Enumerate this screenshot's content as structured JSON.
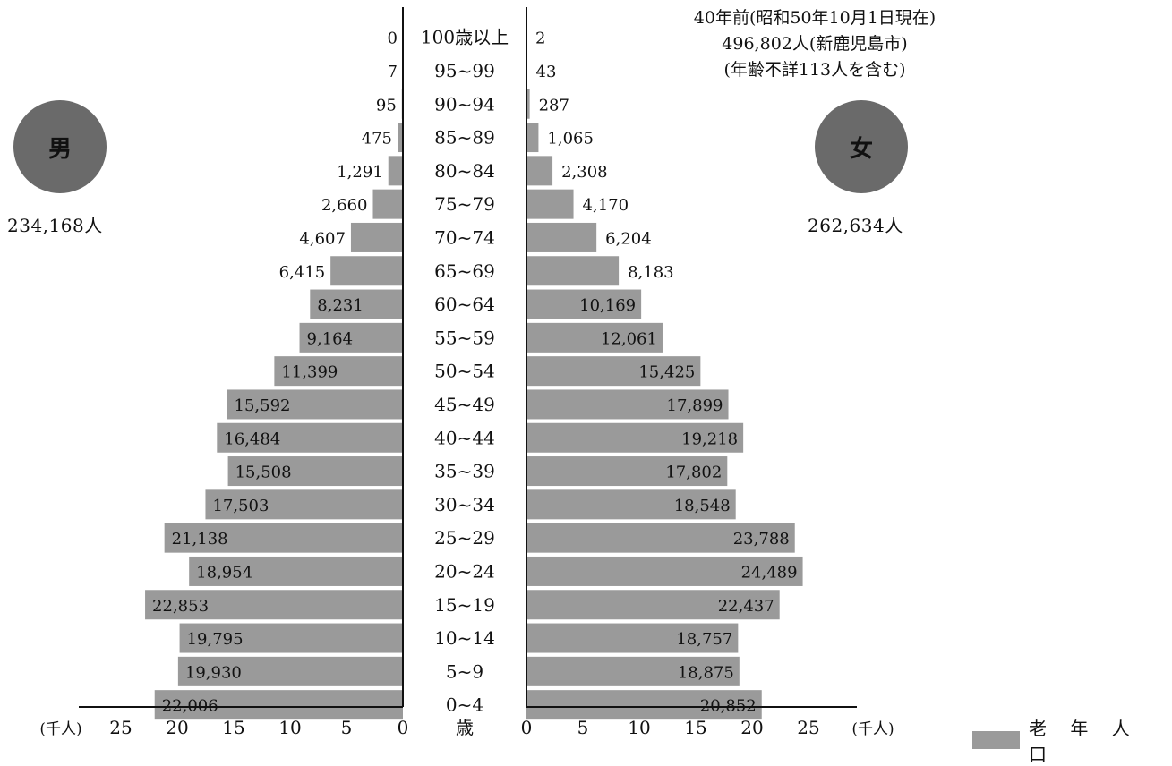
{
  "chart_data": {
    "type": "bar",
    "title_lines": [
      "40年前(昭和50年10月1日現在)",
      "496,802人(新鹿児島市)",
      "(年齢不詳113人を含む)"
    ],
    "left_label": "男",
    "right_label": "女",
    "male_total": "234,168人",
    "female_total": "262,634人",
    "axis_unit": "(千人)",
    "center_axis_label": "歳",
    "ticks": [
      25,
      20,
      15,
      10,
      5,
      0
    ],
    "xlim": [
      0,
      25
    ],
    "legend": "老 年 人 口",
    "categories": [
      "100歳以上",
      "95~99",
      "90~94",
      "85~89",
      "80~84",
      "75~79",
      "70~74",
      "65~69",
      "60~64",
      "55~59",
      "50~54",
      "45~49",
      "40~44",
      "35~39",
      "30~34",
      "25~29",
      "20~24",
      "15~19",
      "10~14",
      "5~9",
      "0~4"
    ],
    "series": [
      {
        "name": "男",
        "values": [
          0,
          7,
          95,
          475,
          1291,
          2660,
          4607,
          6415,
          8231,
          9164,
          11399,
          15592,
          16484,
          15508,
          17503,
          21138,
          18954,
          22853,
          19795,
          19930,
          22006
        ],
        "labels": [
          "0",
          "7",
          "95",
          "475",
          "1,291",
          "2,660",
          "4,607",
          "6,415",
          "8,231",
          "9,164",
          "11,399",
          "15,592",
          "16,484",
          "15,508",
          "17,503",
          "21,138",
          "18,954",
          "22,853",
          "19,795",
          "19,930",
          "22,006"
        ]
      },
      {
        "name": "女",
        "values": [
          2,
          43,
          287,
          1065,
          2308,
          4170,
          6204,
          8183,
          10169,
          12061,
          15425,
          17899,
          19218,
          17802,
          18548,
          23788,
          24489,
          22437,
          18757,
          18875,
          20852
        ],
        "labels": [
          "2",
          "43",
          "287",
          "1,065",
          "2,308",
          "4,170",
          "6,204",
          "8,183",
          "10,169",
          "12,061",
          "15,425",
          "17,899",
          "19,218",
          "17,802",
          "18,548",
          "23,788",
          "24,489",
          "22,437",
          "18,757",
          "18,875",
          "20,852"
        ]
      }
    ],
    "colors": {
      "bar": "#9a9a9a",
      "circle": "#6a6a6a"
    }
  }
}
